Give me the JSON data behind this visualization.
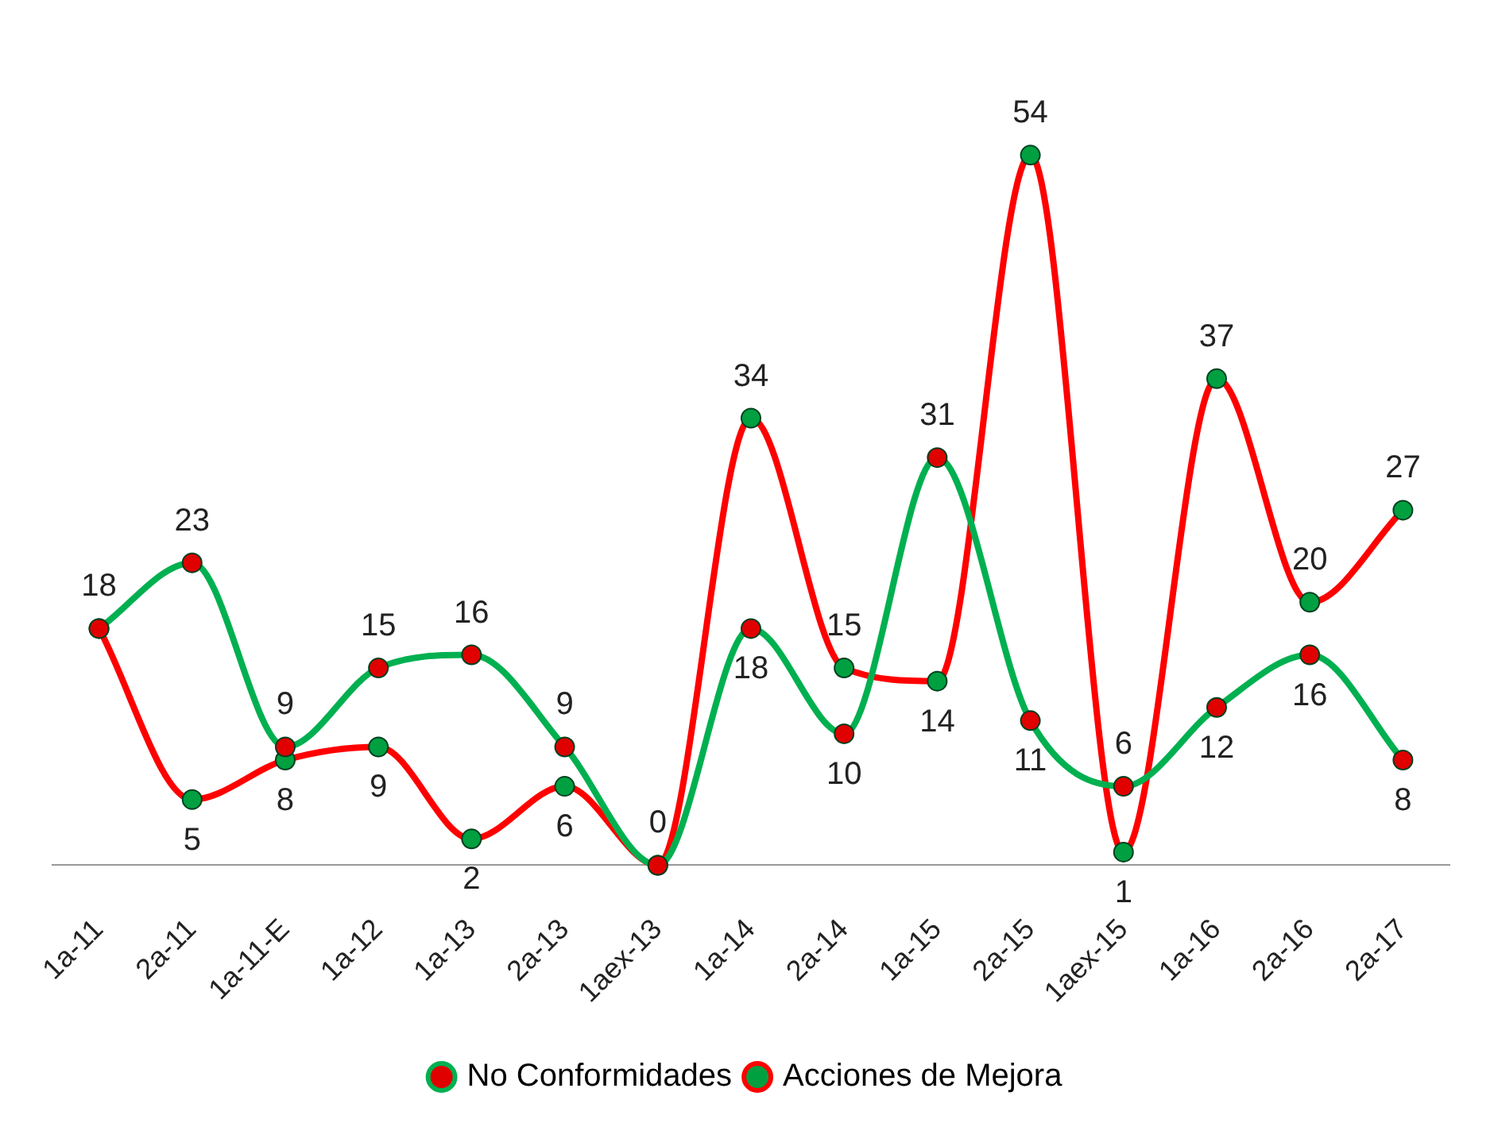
{
  "chart_data": {
    "type": "line",
    "categories": [
      "1a-11",
      "2a-11",
      "1a-11-E",
      "1a-12",
      "1a-13",
      "2a-13",
      "1aex-13",
      "1a-14",
      "2a-14",
      "1a-15",
      "2a-15",
      "1aex-15",
      "1a-16",
      "2a-16",
      "2a-17"
    ],
    "series": [
      {
        "name": "No Conformidades",
        "color": "#00b050",
        "colors": [
          "#e00000",
          "#e00000",
          "#e00000",
          "#e00000",
          "#e00000",
          "#e00000",
          "#e00000",
          "#e00000",
          "#e00000",
          "#e00000",
          "#e00000",
          "#e00000",
          "#e00000",
          "#e00000",
          "#e00000"
        ],
        "values": [
          18,
          23,
          9,
          15,
          16,
          9,
          0,
          18,
          10,
          31,
          11,
          6,
          12,
          16,
          8
        ]
      },
      {
        "name": "Acciones de Mejora",
        "color": "#ff0000",
        "colors": [
          "#00a040",
          "#00a040",
          "#00a040",
          "#00a040",
          "#00a040",
          "#00a040",
          "#00a040",
          "#00a040",
          "#00a040",
          "#00a040",
          "#00a040",
          "#00a040",
          "#00a040",
          "#00a040",
          "#00a040"
        ],
        "values": [
          18,
          5,
          8,
          9,
          2,
          6,
          0,
          34,
          15,
          14,
          54,
          1,
          37,
          20,
          27
        ],
        "value_labels": [
          null,
          "5",
          "8",
          "9",
          "2",
          "6",
          null,
          "34",
          "15",
          "14",
          "54",
          "1",
          "37",
          "20",
          "27"
        ]
      }
    ],
    "data_labels": true,
    "legend": "bottom",
    "marker": "circle",
    "grid": false
  }
}
